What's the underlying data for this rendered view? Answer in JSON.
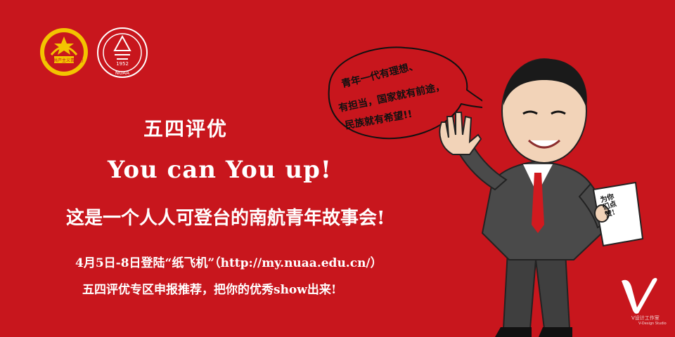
{
  "poster": {
    "title": "五四评优",
    "slogan": "You can You up!",
    "tagline": "这是一个人人可登台的南航青年故事会!",
    "info_line": "4月5日-8日登陆“纸飞机”（http://my.nuaa.edu.cn/）",
    "info_line2": "五四评优专区申报推荐，把你的优秀show出来!"
  },
  "logos": {
    "youth_league_text": "中国共产主义青年团",
    "nuaa_year": "1952",
    "nuaa_abbr": "NUAA"
  },
  "speech_bubble": {
    "line1": "青年一代有理想、",
    "line2": "有担当，国家就有前途，",
    "line3": "民族就有希望!!"
  },
  "paper_note": "为你们点赞!",
  "studio": {
    "mark": "V",
    "name": "V设计工作室",
    "sub": "V-Design Studio"
  },
  "colors": {
    "background": "#c8161d",
    "suit": "#4a4a4a",
    "tie": "#d11a1f"
  }
}
